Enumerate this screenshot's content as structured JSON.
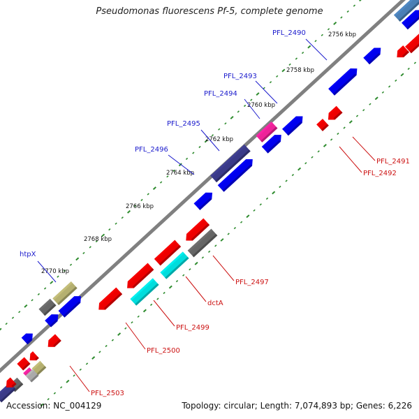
{
  "title": "Pseudomonas fluorescens Pf-5, complete genome",
  "footer": {
    "accession": "Accession: NC_004129",
    "summary": "Topology: circular; Length: 7,074,893 bp; Genes: 6,226"
  },
  "colors": {
    "backbone": "#808080",
    "forward_label": "#1a1acc",
    "reverse_label": "#cc1111",
    "tick_ring": "#2e8b2e"
  },
  "scale_labels": [
    "2756 kbp",
    "2758 kbp",
    "2760 kbp",
    "2762 kbp",
    "2764 kbp",
    "2766 kbp",
    "2768 kbp",
    "2770 kbp"
  ],
  "gene_labels": [
    {
      "text": "PFL_2490",
      "strand": "forward"
    },
    {
      "text": "PFL_2493",
      "strand": "forward"
    },
    {
      "text": "PFL_2494",
      "strand": "forward"
    },
    {
      "text": "PFL_2495",
      "strand": "forward"
    },
    {
      "text": "PFL_2496",
      "strand": "forward"
    },
    {
      "text": "htpX",
      "strand": "forward"
    },
    {
      "text": "PFL_2491",
      "strand": "reverse"
    },
    {
      "text": "PFL_2492",
      "strand": "reverse"
    },
    {
      "text": "PFL_2497",
      "strand": "reverse"
    },
    {
      "text": "dctA",
      "strand": "reverse"
    },
    {
      "text": "PFL_2499",
      "strand": "reverse"
    },
    {
      "text": "PFL_2500",
      "strand": "reverse"
    },
    {
      "text": "PFL_2503",
      "strand": "reverse"
    }
  ],
  "features": [
    {
      "gene": "unlabeled",
      "color": "#4a7fb5"
    },
    {
      "gene": "unlabeled",
      "color": "#0000ee"
    },
    {
      "gene": "unlabeled",
      "color": "#0000ee"
    },
    {
      "gene": "unlabeled",
      "color": "#ee0000"
    },
    {
      "gene": "unlabeled",
      "color": "#ee0000"
    },
    {
      "gene": "PFL_2490",
      "color": "#0000ee"
    },
    {
      "gene": "PFL_2491",
      "color": "#ee0000"
    },
    {
      "gene": "PFL_2492",
      "color": "#ee0000"
    },
    {
      "gene": "PFL_2493",
      "color": "#0000ee"
    },
    {
      "gene": "PFL_2494",
      "color": "#ee2299"
    },
    {
      "gene": "unlabeled",
      "color": "#0000ee"
    },
    {
      "gene": "PFL_2495",
      "color": "#3a3a88"
    },
    {
      "gene": "PFL_2496",
      "color": "#0000ee"
    },
    {
      "gene": "unlabeled",
      "color": "#0000ee"
    },
    {
      "gene": "unlabeled",
      "color": "#ee0000"
    },
    {
      "gene": "unlabeled",
      "color": "#ee0000"
    },
    {
      "gene": "PFL_2497",
      "color": "#666666"
    },
    {
      "gene": "dctA",
      "color": "#00dddd"
    },
    {
      "gene": "PFL_2499",
      "color": "#00dddd"
    },
    {
      "gene": "unlabeled",
      "color": "#ee0000"
    },
    {
      "gene": "PFL_2500",
      "color": "#ee0000"
    },
    {
      "gene": "htpX",
      "color": "#b5b070"
    },
    {
      "gene": "unlabeled",
      "color": "#666666"
    },
    {
      "gene": "unlabeled",
      "color": "#0000ee"
    },
    {
      "gene": "unlabeled",
      "color": "#0000ee"
    },
    {
      "gene": "unlabeled",
      "color": "#0000ee"
    },
    {
      "gene": "unlabeled",
      "color": "#ee0000"
    },
    {
      "gene": "unlabeled",
      "color": "#ee0000"
    },
    {
      "gene": "unlabeled",
      "color": "#b5b070"
    },
    {
      "gene": "unlabeled",
      "color": "#ee2299"
    },
    {
      "gene": "unlabeled",
      "color": "#aaaaaa"
    },
    {
      "gene": "PFL_2503",
      "color": "#ee0000"
    },
    {
      "gene": "unlabeled",
      "color": "#666666"
    },
    {
      "gene": "unlabeled",
      "color": "#3a3a88"
    },
    {
      "gene": "unlabeled",
      "color": "#ee0000"
    }
  ]
}
